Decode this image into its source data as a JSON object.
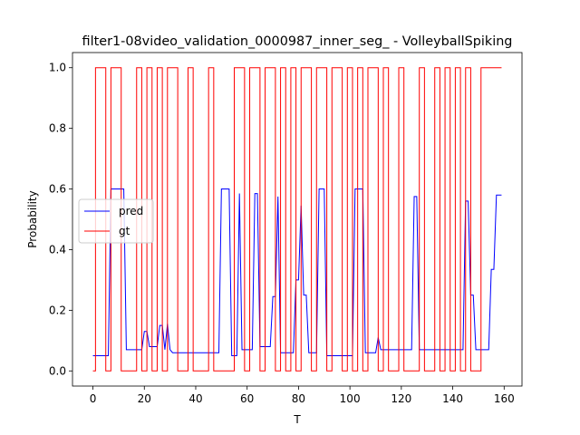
{
  "chart_data": {
    "type": "line",
    "title": "filter1-08video_validation_0000987_inner_seg_ - VolleyballSpiking",
    "x_label": "T",
    "y_label": "Probability",
    "x": [
      0,
      1,
      2,
      3,
      4,
      5,
      6,
      7,
      8,
      9,
      10,
      11,
      12,
      13,
      14,
      15,
      16,
      17,
      18,
      19,
      20,
      21,
      22,
      23,
      24,
      25,
      26,
      27,
      28,
      29,
      30,
      31,
      32,
      33,
      34,
      35,
      36,
      37,
      38,
      39,
      40,
      41,
      42,
      43,
      44,
      45,
      46,
      47,
      48,
      49,
      50,
      51,
      52,
      53,
      54,
      55,
      56,
      57,
      58,
      59,
      60,
      61,
      62,
      63,
      64,
      65,
      66,
      67,
      68,
      69,
      70,
      71,
      72,
      73,
      74,
      75,
      76,
      77,
      78,
      79,
      80,
      81,
      82,
      83,
      84,
      85,
      86,
      87,
      88,
      89,
      90,
      91,
      92,
      93,
      94,
      95,
      96,
      97,
      98,
      99,
      100,
      101,
      102,
      103,
      104,
      105,
      106,
      107,
      108,
      109,
      110,
      111,
      112,
      113,
      114,
      115,
      116,
      117,
      118,
      119,
      120,
      121,
      122,
      123,
      124,
      125,
      126,
      127,
      128,
      129,
      130,
      131,
      132,
      133,
      134,
      135,
      136,
      137,
      138,
      139,
      140,
      141,
      142,
      143,
      144,
      145,
      146,
      147,
      148,
      149,
      150,
      151,
      152,
      153,
      154,
      155,
      156,
      157,
      158,
      159
    ],
    "series": [
      {
        "name": "pred",
        "color": "#0000ff",
        "step": false,
        "values": [
          0.05,
          0.05,
          0.05,
          0.05,
          0.05,
          0.05,
          0.05,
          0.6,
          0.6,
          0.6,
          0.6,
          0.6,
          0.6,
          0.07,
          0.07,
          0.07,
          0.07,
          0.07,
          0.07,
          0.07,
          0.13,
          0.13,
          0.08,
          0.08,
          0.08,
          0.08,
          0.15,
          0.15,
          0.07,
          0.155,
          0.07,
          0.06,
          0.06,
          0.06,
          0.06,
          0.06,
          0.06,
          0.06,
          0.06,
          0.06,
          0.06,
          0.06,
          0.06,
          0.06,
          0.06,
          0.06,
          0.06,
          0.06,
          0.06,
          0.06,
          0.6,
          0.6,
          0.6,
          0.6,
          0.05,
          0.05,
          0.05,
          0.585,
          0.07,
          0.07,
          0.07,
          0.07,
          0.07,
          0.585,
          0.585,
          0.08,
          0.08,
          0.08,
          0.08,
          0.08,
          0.245,
          0.245,
          0.575,
          0.06,
          0.06,
          0.06,
          0.06,
          0.06,
          0.06,
          0.3,
          0.3,
          0.545,
          0.25,
          0.25,
          0.06,
          0.06,
          0.06,
          0.06,
          0.6,
          0.6,
          0.6,
          0.05,
          0.05,
          0.05,
          0.05,
          0.05,
          0.05,
          0.05,
          0.05,
          0.05,
          0.05,
          0.05,
          0.6,
          0.6,
          0.6,
          0.6,
          0.06,
          0.06,
          0.06,
          0.06,
          0.06,
          0.11,
          0.07,
          0.07,
          0.07,
          0.07,
          0.07,
          0.07,
          0.07,
          0.07,
          0.07,
          0.07,
          0.07,
          0.07,
          0.07,
          0.575,
          0.575,
          0.07,
          0.07,
          0.07,
          0.07,
          0.07,
          0.07,
          0.07,
          0.07,
          0.07,
          0.07,
          0.07,
          0.07,
          0.07,
          0.07,
          0.07,
          0.07,
          0.07,
          0.07,
          0.56,
          0.56,
          0.25,
          0.25,
          0.07,
          0.07,
          0.07,
          0.07,
          0.07,
          0.07,
          0.335,
          0.335,
          0.58,
          0.58,
          0.58
        ]
      },
      {
        "name": "gt",
        "color": "#ff0000",
        "step": true,
        "values": [
          0,
          1,
          1,
          1,
          1,
          0,
          0,
          1,
          1,
          1,
          1,
          0,
          0,
          0,
          0,
          0,
          0,
          1,
          1,
          0,
          0,
          1,
          1,
          0,
          0,
          1,
          1,
          0,
          0,
          1,
          1,
          1,
          1,
          0,
          0,
          0,
          0,
          1,
          1,
          0,
          0,
          0,
          0,
          0,
          0,
          1,
          1,
          0,
          0,
          0,
          0,
          0,
          0,
          0,
          0,
          1,
          1,
          1,
          1,
          0,
          0,
          1,
          1,
          1,
          1,
          0,
          0,
          1,
          1,
          1,
          1,
          0,
          0,
          1,
          1,
          0,
          0,
          1,
          1,
          0,
          0,
          1,
          1,
          1,
          1,
          0,
          0,
          1,
          1,
          1,
          1,
          0,
          0,
          1,
          1,
          1,
          1,
          0,
          0,
          1,
          1,
          0,
          0,
          1,
          1,
          0,
          0,
          1,
          1,
          1,
          1,
          0,
          0,
          1,
          1,
          0,
          0,
          0,
          0,
          1,
          1,
          0,
          0,
          0,
          0,
          0,
          0,
          1,
          1,
          0,
          0,
          0,
          0,
          1,
          1,
          0,
          0,
          1,
          1,
          0,
          0,
          1,
          1,
          0,
          0,
          1,
          1,
          0,
          0,
          0,
          0,
          1,
          1,
          1,
          1,
          1,
          1,
          1,
          1,
          1
        ]
      }
    ],
    "xlim": [
      -7.95,
      166.95
    ],
    "ylim": [
      -0.05,
      1.05
    ],
    "xticks": [
      0,
      20,
      40,
      60,
      80,
      100,
      120,
      140,
      160
    ],
    "yticks": [
      {
        "value": 0,
        "label": "0.0"
      },
      0.2,
      0.4,
      0.6,
      0.8,
      {
        "value": 1,
        "label": "1.0"
      }
    ],
    "legend": "center left"
  }
}
